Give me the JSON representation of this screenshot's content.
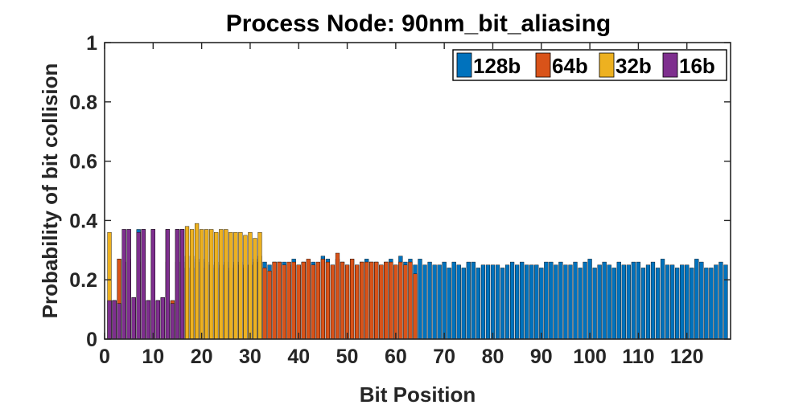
{
  "chart_data": {
    "type": "bar",
    "title": "Process Node: 90nm_bit_aliasing",
    "xlabel": "Bit Position",
    "ylabel": "Probability of bit collision",
    "xlim": [
      0,
      129
    ],
    "ylim": [
      0,
      1
    ],
    "xticks": [
      0,
      10,
      20,
      30,
      40,
      50,
      60,
      70,
      80,
      90,
      100,
      110,
      120
    ],
    "yticks": [
      0,
      0.2,
      0.4,
      0.6,
      0.8,
      1
    ],
    "ytick_labels": [
      "0",
      "0.2",
      "0.4",
      "0.6",
      "0.8",
      "1"
    ],
    "grid": false,
    "legend_position": "top-right",
    "legend_orientation": "horizontal",
    "series": [
      {
        "name": "128b",
        "color": "#0072BD",
        "values": [
          0.13,
          0.13,
          0.27,
          0.37,
          0.37,
          0.14,
          0.37,
          0.37,
          0.13,
          0.37,
          0.13,
          0.14,
          0.37,
          0.13,
          0.37,
          0.37,
          0.28,
          0.28,
          0.27,
          0.27,
          0.26,
          0.25,
          0.26,
          0.25,
          0.26,
          0.24,
          0.26,
          0.26,
          0.25,
          0.25,
          0.27,
          0.28,
          0.26,
          0.25,
          0.26,
          0.26,
          0.26,
          0.25,
          0.27,
          0.25,
          0.26,
          0.26,
          0.26,
          0.25,
          0.28,
          0.27,
          0.25,
          0.27,
          0.26,
          0.25,
          0.27,
          0.25,
          0.26,
          0.27,
          0.26,
          0.26,
          0.25,
          0.26,
          0.27,
          0.25,
          0.28,
          0.26,
          0.27,
          0.25,
          0.27,
          0.25,
          0.26,
          0.25,
          0.25,
          0.26,
          0.24,
          0.26,
          0.25,
          0.24,
          0.26,
          0.26,
          0.24,
          0.25,
          0.25,
          0.25,
          0.25,
          0.24,
          0.25,
          0.26,
          0.25,
          0.26,
          0.25,
          0.25,
          0.25,
          0.24,
          0.26,
          0.26,
          0.25,
          0.26,
          0.25,
          0.25,
          0.26,
          0.24,
          0.26,
          0.27,
          0.24,
          0.25,
          0.26,
          0.25,
          0.24,
          0.26,
          0.25,
          0.25,
          0.26,
          0.26,
          0.24,
          0.25,
          0.26,
          0.24,
          0.27,
          0.25,
          0.25,
          0.24,
          0.25,
          0.25,
          0.24,
          0.27,
          0.26,
          0.24,
          0.24,
          0.25,
          0.26,
          0.25
        ]
      },
      {
        "name": "64b",
        "color": "#D95319",
        "values": [
          0.13,
          0.13,
          0.27,
          0.26,
          0.27,
          0.14,
          0.26,
          0.27,
          0.13,
          0.26,
          0.13,
          0.14,
          0.26,
          0.13,
          0.26,
          0.26,
          0.24,
          0.24,
          0.26,
          0.24,
          0.25,
          0.24,
          0.24,
          0.24,
          0.25,
          0.23,
          0.25,
          0.25,
          0.24,
          0.25,
          0.26,
          0.26,
          0.24,
          0.23,
          0.26,
          0.26,
          0.25,
          0.26,
          0.26,
          0.25,
          0.26,
          0.27,
          0.25,
          0.26,
          0.27,
          0.26,
          0.25,
          0.29,
          0.26,
          0.25,
          0.27,
          0.25,
          0.26,
          0.26,
          0.26,
          0.26,
          0.25,
          0.26,
          0.26,
          0.25,
          0.26,
          0.25,
          0.26,
          0.22
        ]
      },
      {
        "name": "32b",
        "color": "#EDB120",
        "values": [
          0.36,
          0.13,
          0.12,
          0.26,
          0.26,
          0.14,
          0.25,
          0.37,
          0.13,
          0.37,
          0.13,
          0.14,
          0.37,
          0.12,
          0.37,
          0.37,
          0.38,
          0.37,
          0.39,
          0.37,
          0.37,
          0.37,
          0.36,
          0.37,
          0.37,
          0.36,
          0.36,
          0.36,
          0.35,
          0.36,
          0.34,
          0.36
        ]
      },
      {
        "name": "16b",
        "color": "#7E2F8E",
        "values": [
          0.13,
          0.13,
          0.12,
          0.37,
          0.37,
          0.14,
          0.36,
          0.37,
          0.13,
          0.37,
          0.13,
          0.14,
          0.37,
          0.12,
          0.37,
          0.37
        ]
      }
    ]
  }
}
